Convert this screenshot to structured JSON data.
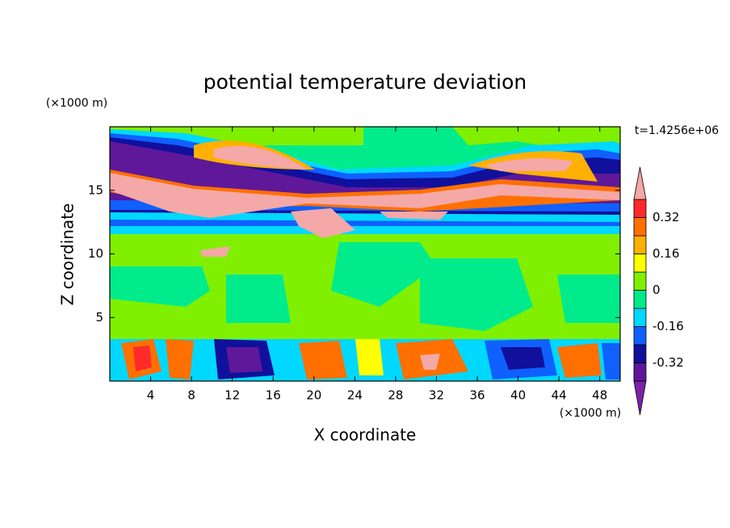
{
  "chart_data": {
    "type": "contour",
    "title": "potential temperature deviation",
    "x_label": "X coordinate",
    "y_label": "Z coordinate",
    "x_unit": "(×1000 m)",
    "y_unit": "(×1000 m)",
    "annotation": "t=1.4256e+06",
    "xlim": [
      0,
      50
    ],
    "ylim": [
      0,
      20
    ],
    "xticks": [
      4,
      8,
      12,
      16,
      20,
      24,
      28,
      32,
      36,
      40,
      44,
      48
    ],
    "yticks": [
      5,
      10,
      15
    ],
    "colorbar": {
      "levels": [
        -0.4,
        -0.32,
        -0.24,
        -0.16,
        -0.08,
        0,
        0.08,
        0.16,
        0.24,
        0.32,
        0.4
      ],
      "ticks": [
        -0.32,
        -0.16,
        0,
        0.16,
        0.32
      ],
      "colors": [
        "#7b22a8",
        "#5e1899",
        "#10109c",
        "#1060ff",
        "#00d8ff",
        "#00eb8c",
        "#80f000",
        "#ffff00",
        "#ffb000",
        "#ff7000",
        "#ff2a2a",
        "#f5a8a8"
      ],
      "extend": "both"
    }
  }
}
